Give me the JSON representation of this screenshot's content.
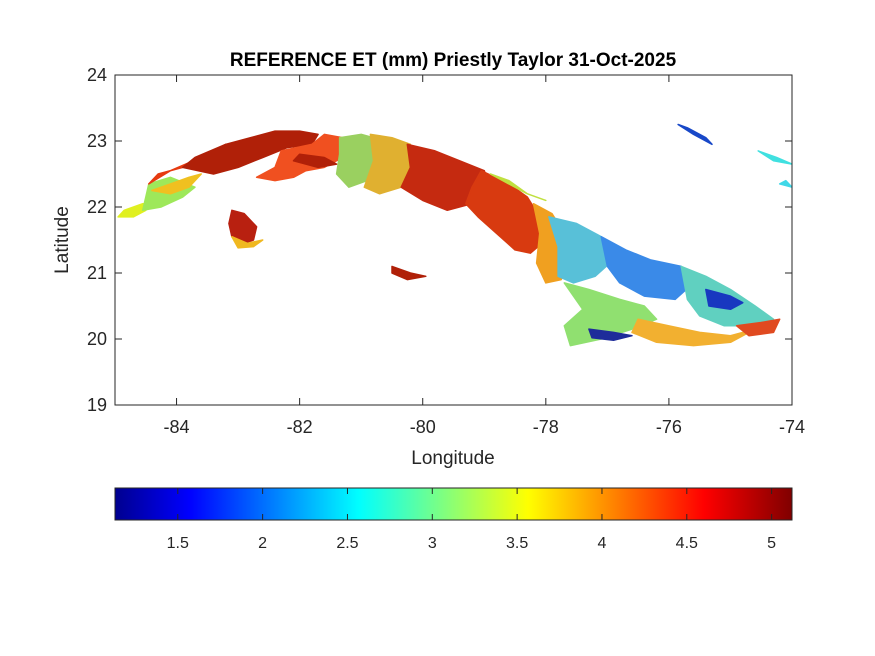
{
  "figure": {
    "title": "REFERENCE ET (mm) Priestly Taylor 31-Oct-2025",
    "xlabel": "Longitude",
    "ylabel": "Latitude"
  },
  "map": {
    "x_ticks": [
      {
        "value": -84,
        "label": "-84"
      },
      {
        "value": -82,
        "label": "-82"
      },
      {
        "value": -80,
        "label": "-80"
      },
      {
        "value": -78,
        "label": "-78"
      },
      {
        "value": -76,
        "label": "-76"
      },
      {
        "value": -74,
        "label": "-74"
      }
    ],
    "y_ticks": [
      {
        "value": 19,
        "label": "19"
      },
      {
        "value": 20,
        "label": "20"
      },
      {
        "value": 21,
        "label": "21"
      },
      {
        "value": 22,
        "label": "22"
      },
      {
        "value": 23,
        "label": "23"
      },
      {
        "value": 24,
        "label": "24"
      }
    ],
    "xlim": [
      -85,
      -74
    ],
    "ylim": [
      19,
      24
    ],
    "colormap": "jet",
    "regions": [
      {
        "name": "pinar-west-tip",
        "color": "#e0f020",
        "outline": [
          [
            -84.95,
            21.85
          ],
          [
            -84.7,
            21.85
          ],
          [
            -84.5,
            21.95
          ],
          [
            -84.4,
            22.05
          ],
          [
            -84.55,
            22.05
          ],
          [
            -84.85,
            21.95
          ]
        ]
      },
      {
        "name": "pinar-west",
        "color": "#9ee85a",
        "outline": [
          [
            -84.55,
            21.95
          ],
          [
            -84.25,
            22.0
          ],
          [
            -83.9,
            22.15
          ],
          [
            -83.7,
            22.3
          ],
          [
            -84.1,
            22.45
          ],
          [
            -84.45,
            22.35
          ],
          [
            -84.5,
            22.15
          ]
        ]
      },
      {
        "name": "pinar-north-west",
        "color": "#e63a10",
        "outline": [
          [
            -84.45,
            22.35
          ],
          [
            -84.1,
            22.55
          ],
          [
            -83.6,
            22.75
          ],
          [
            -83.2,
            22.95
          ],
          [
            -83.4,
            22.85
          ],
          [
            -83.9,
            22.6
          ],
          [
            -84.3,
            22.5
          ]
        ]
      },
      {
        "name": "pinar-mid",
        "color": "#b02008",
        "outline": [
          [
            -83.7,
            22.75
          ],
          [
            -83.2,
            22.95
          ],
          [
            -82.8,
            23.05
          ],
          [
            -82.4,
            23.15
          ],
          [
            -82.0,
            23.15
          ],
          [
            -81.7,
            23.1
          ],
          [
            -81.8,
            22.95
          ],
          [
            -82.2,
            22.9
          ],
          [
            -82.6,
            22.75
          ],
          [
            -83.0,
            22.6
          ],
          [
            -83.4,
            22.5
          ],
          [
            -83.9,
            22.6
          ]
        ]
      },
      {
        "name": "pinar-south-coast",
        "color": "#f0c020",
        "outline": [
          [
            -84.4,
            22.25
          ],
          [
            -84.1,
            22.35
          ],
          [
            -83.8,
            22.45
          ],
          [
            -83.6,
            22.5
          ],
          [
            -83.8,
            22.3
          ],
          [
            -84.1,
            22.2
          ]
        ]
      },
      {
        "name": "havana-west",
        "color": "#f05020",
        "outline": [
          [
            -82.3,
            22.85
          ],
          [
            -81.8,
            22.95
          ],
          [
            -81.6,
            23.1
          ],
          [
            -81.3,
            23.05
          ],
          [
            -81.3,
            22.75
          ],
          [
            -81.6,
            22.6
          ],
          [
            -81.9,
            22.55
          ],
          [
            -82.1,
            22.45
          ],
          [
            -82.4,
            22.4
          ],
          [
            -82.7,
            22.45
          ],
          [
            -82.4,
            22.6
          ]
        ]
      },
      {
        "name": "matanzas-west",
        "color": "#9ad060",
        "outline": [
          [
            -81.35,
            23.05
          ],
          [
            -81.0,
            23.1
          ],
          [
            -80.8,
            23.05
          ],
          [
            -80.75,
            22.7
          ],
          [
            -80.9,
            22.4
          ],
          [
            -81.2,
            22.3
          ],
          [
            -81.4,
            22.5
          ],
          [
            -81.35,
            22.8
          ]
        ]
      },
      {
        "name": "matanzas-east",
        "color": "#e0b030",
        "outline": [
          [
            -80.85,
            23.1
          ],
          [
            -80.5,
            23.05
          ],
          [
            -80.2,
            22.95
          ],
          [
            -80.1,
            22.6
          ],
          [
            -80.35,
            22.3
          ],
          [
            -80.7,
            22.2
          ],
          [
            -80.95,
            22.3
          ],
          [
            -80.8,
            22.7
          ]
        ]
      },
      {
        "name": "villa-clara",
        "color": "#c52a10",
        "outline": [
          [
            -80.25,
            22.95
          ],
          [
            -79.8,
            22.85
          ],
          [
            -79.4,
            22.7
          ],
          [
            -79.0,
            22.55
          ],
          [
            -78.9,
            22.3
          ],
          [
            -79.2,
            22.05
          ],
          [
            -79.6,
            21.95
          ],
          [
            -80.0,
            22.1
          ],
          [
            -80.35,
            22.3
          ],
          [
            -80.2,
            22.6
          ]
        ]
      },
      {
        "name": "ciego",
        "color": "#d83a10",
        "outline": [
          [
            -79.05,
            22.55
          ],
          [
            -78.6,
            22.35
          ],
          [
            -78.3,
            22.15
          ],
          [
            -78.1,
            21.85
          ],
          [
            -78.0,
            21.5
          ],
          [
            -78.25,
            21.3
          ],
          [
            -78.5,
            21.35
          ],
          [
            -78.8,
            21.6
          ],
          [
            -79.1,
            21.85
          ],
          [
            -79.3,
            22.05
          ],
          [
            -79.2,
            22.3
          ]
        ]
      },
      {
        "name": "camaguey-west",
        "color": "#f0a020",
        "outline": [
          [
            -78.2,
            22.05
          ],
          [
            -77.9,
            21.9
          ],
          [
            -77.7,
            21.6
          ],
          [
            -77.6,
            21.25
          ],
          [
            -77.75,
            20.9
          ],
          [
            -78.0,
            20.85
          ],
          [
            -78.15,
            21.15
          ],
          [
            -78.1,
            21.6
          ]
        ]
      },
      {
        "name": "camaguey",
        "color": "#58c0d8",
        "outline": [
          [
            -77.95,
            21.85
          ],
          [
            -77.5,
            21.75
          ],
          [
            -77.1,
            21.55
          ],
          [
            -76.9,
            21.2
          ],
          [
            -77.2,
            20.95
          ],
          [
            -77.55,
            20.85
          ],
          [
            -77.8,
            20.95
          ],
          [
            -77.8,
            21.4
          ]
        ]
      },
      {
        "name": "las-tunas",
        "color": "#3a8ae8",
        "outline": [
          [
            -77.1,
            21.55
          ],
          [
            -76.7,
            21.35
          ],
          [
            -76.3,
            21.2
          ],
          [
            -75.8,
            21.1
          ],
          [
            -75.6,
            20.85
          ],
          [
            -75.9,
            20.6
          ],
          [
            -76.4,
            20.65
          ],
          [
            -76.8,
            20.85
          ],
          [
            -77.0,
            21.1
          ]
        ]
      },
      {
        "name": "holguin",
        "color": "#60d0c0",
        "outline": [
          [
            -75.8,
            21.1
          ],
          [
            -75.4,
            20.95
          ],
          [
            -75.0,
            20.75
          ],
          [
            -74.6,
            20.5
          ],
          [
            -74.3,
            20.3
          ],
          [
            -74.6,
            20.2
          ],
          [
            -75.1,
            20.2
          ],
          [
            -75.5,
            20.35
          ],
          [
            -75.7,
            20.6
          ]
        ]
      },
      {
        "name": "holguin-dark",
        "color": "#1838c0",
        "outline": [
          [
            -75.4,
            20.75
          ],
          [
            -75.0,
            20.65
          ],
          [
            -74.8,
            20.55
          ],
          [
            -75.0,
            20.45
          ],
          [
            -75.35,
            20.5
          ]
        ]
      },
      {
        "name": "granma",
        "color": "#90e070",
        "outline": [
          [
            -77.7,
            20.85
          ],
          [
            -77.3,
            20.75
          ],
          [
            -76.8,
            20.6
          ],
          [
            -76.4,
            20.5
          ],
          [
            -76.2,
            20.3
          ],
          [
            -76.6,
            20.15
          ],
          [
            -77.1,
            20.0
          ],
          [
            -77.6,
            19.9
          ],
          [
            -77.7,
            20.2
          ],
          [
            -77.4,
            20.45
          ]
        ]
      },
      {
        "name": "granma-dark",
        "color": "#1e2c9a",
        "outline": [
          [
            -77.3,
            20.15
          ],
          [
            -76.9,
            20.1
          ],
          [
            -76.6,
            20.05
          ],
          [
            -76.9,
            19.98
          ],
          [
            -77.25,
            20.02
          ]
        ]
      },
      {
        "name": "santiago",
        "color": "#f2b030",
        "outline": [
          [
            -76.5,
            20.3
          ],
          [
            -76.0,
            20.2
          ],
          [
            -75.5,
            20.1
          ],
          [
            -75.0,
            20.05
          ],
          [
            -74.6,
            20.15
          ],
          [
            -75.0,
            19.95
          ],
          [
            -75.6,
            19.9
          ],
          [
            -76.2,
            19.95
          ],
          [
            -76.6,
            20.1
          ]
        ]
      },
      {
        "name": "guantanamo",
        "color": "#e04a20",
        "outline": [
          [
            -74.9,
            20.2
          ],
          [
            -74.5,
            20.25
          ],
          [
            -74.2,
            20.3
          ],
          [
            -74.3,
            20.1
          ],
          [
            -74.7,
            20.05
          ]
        ]
      },
      {
        "name": "isla-juventud",
        "color": "#b82010",
        "outline": [
          [
            -83.1,
            21.95
          ],
          [
            -82.9,
            21.9
          ],
          [
            -82.7,
            21.7
          ],
          [
            -82.75,
            21.5
          ],
          [
            -82.9,
            21.45
          ],
          [
            -83.1,
            21.55
          ],
          [
            -83.15,
            21.75
          ]
        ]
      },
      {
        "name": "isla-juventud-south",
        "color": "#f0b820",
        "outline": [
          [
            -83.1,
            21.55
          ],
          [
            -82.85,
            21.45
          ],
          [
            -82.6,
            21.5
          ],
          [
            -82.75,
            21.4
          ],
          [
            -83.0,
            21.38
          ]
        ]
      },
      {
        "name": "cayo-north-1",
        "color": "#b02008",
        "outline": [
          [
            -82.0,
            22.8
          ],
          [
            -81.6,
            22.75
          ],
          [
            -81.4,
            22.65
          ],
          [
            -81.7,
            22.6
          ],
          [
            -82.1,
            22.7
          ]
        ]
      },
      {
        "name": "cayo-north-east",
        "color": "#c0e040",
        "outline": [
          [
            -78.9,
            22.5
          ],
          [
            -78.6,
            22.4
          ],
          [
            -78.3,
            22.2
          ],
          [
            -78.0,
            22.1
          ],
          [
            -78.3,
            22.2
          ],
          [
            -78.7,
            22.4
          ]
        ]
      },
      {
        "name": "cayo-sw",
        "color": "#b02008",
        "outline": [
          [
            -80.5,
            21.1
          ],
          [
            -80.2,
            21.0
          ],
          [
            -79.95,
            20.95
          ],
          [
            -80.25,
            20.9
          ],
          [
            -80.5,
            21.0
          ]
        ]
      }
    ],
    "small_features": [
      {
        "name": "bahamas-blue",
        "color": "#1848c8",
        "outline": [
          [
            -75.85,
            23.25
          ],
          [
            -75.6,
            23.1
          ],
          [
            -75.3,
            22.95
          ],
          [
            -75.4,
            23.05
          ],
          [
            -75.7,
            23.2
          ]
        ]
      },
      {
        "name": "bahamas-cyan-1",
        "color": "#40e0e0",
        "outline": [
          [
            -74.55,
            22.85
          ],
          [
            -74.25,
            22.75
          ],
          [
            -74.0,
            22.65
          ],
          [
            -74.3,
            22.7
          ]
        ]
      },
      {
        "name": "bahamas-cyan-2",
        "color": "#40d8e8",
        "outline": [
          [
            -74.2,
            22.35
          ],
          [
            -74.0,
            22.3
          ],
          [
            -74.1,
            22.4
          ]
        ]
      }
    ]
  },
  "colorbar": {
    "min": 1.13,
    "max": 5.12,
    "ticks": [
      {
        "value": 1.5,
        "label": "1.5"
      },
      {
        "value": 2,
        "label": "2"
      },
      {
        "value": 2.5,
        "label": "2.5"
      },
      {
        "value": 3,
        "label": "3"
      },
      {
        "value": 3.5,
        "label": "3.5"
      },
      {
        "value": 4,
        "label": "4"
      },
      {
        "value": 4.5,
        "label": "4.5"
      },
      {
        "value": 5,
        "label": "5"
      }
    ],
    "stops": [
      "#00008f",
      "#0000ff",
      "#00ffff",
      "#ffff00",
      "#ff0000",
      "#800000"
    ]
  }
}
